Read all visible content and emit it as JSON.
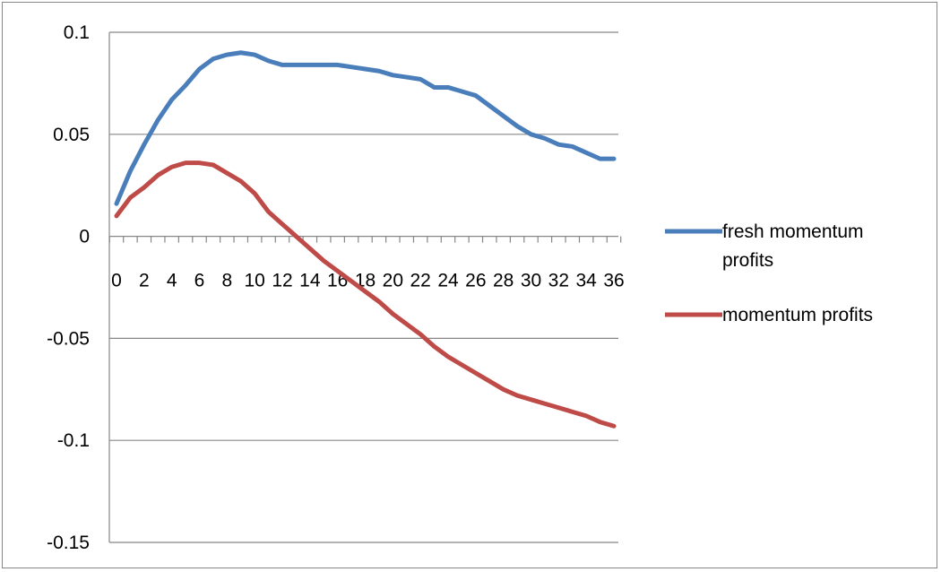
{
  "chart_data": {
    "type": "line",
    "title": "",
    "xlabel": "",
    "ylabel": "",
    "x": [
      0,
      1,
      2,
      3,
      4,
      5,
      6,
      7,
      8,
      9,
      10,
      11,
      12,
      13,
      14,
      15,
      16,
      17,
      18,
      19,
      20,
      21,
      22,
      23,
      24,
      25,
      26,
      27,
      28,
      29,
      30,
      31,
      32,
      33,
      34,
      35,
      36
    ],
    "x_tick_labels": [
      "0",
      "2",
      "4",
      "6",
      "8",
      "10",
      "12",
      "14",
      "16",
      "18",
      "20",
      "22",
      "24",
      "26",
      "28",
      "30",
      "32",
      "34",
      "36"
    ],
    "y_tick_labels": [
      "0.1",
      "0.05",
      "0",
      "-0.05",
      "-0.1",
      "-0.15"
    ],
    "ylim": [
      -0.15,
      0.1
    ],
    "grid": "horizontal major gridlines",
    "legend_position": "right",
    "series": [
      {
        "name": "fresh momentum profits",
        "color": "#4a7ebb",
        "values": [
          0.016,
          0.032,
          0.045,
          0.057,
          0.067,
          0.074,
          0.082,
          0.087,
          0.089,
          0.09,
          0.089,
          0.086,
          0.084,
          0.084,
          0.084,
          0.084,
          0.084,
          0.083,
          0.082,
          0.081,
          0.079,
          0.078,
          0.077,
          0.073,
          0.073,
          0.071,
          0.069,
          0.064,
          0.059,
          0.054,
          0.05,
          0.048,
          0.045,
          0.044,
          0.041,
          0.038,
          0.038
        ]
      },
      {
        "name": "momentum profits",
        "color": "#be4b48",
        "values": [
          0.01,
          0.019,
          0.024,
          0.03,
          0.034,
          0.036,
          0.036,
          0.035,
          0.031,
          0.027,
          0.021,
          0.012,
          0.006,
          0.0,
          -0.006,
          -0.012,
          -0.017,
          -0.022,
          -0.027,
          -0.032,
          -0.038,
          -0.043,
          -0.048,
          -0.054,
          -0.059,
          -0.063,
          -0.067,
          -0.071,
          -0.075,
          -0.078,
          -0.08,
          -0.082,
          -0.084,
          -0.086,
          -0.088,
          -0.091,
          -0.093
        ]
      }
    ]
  }
}
